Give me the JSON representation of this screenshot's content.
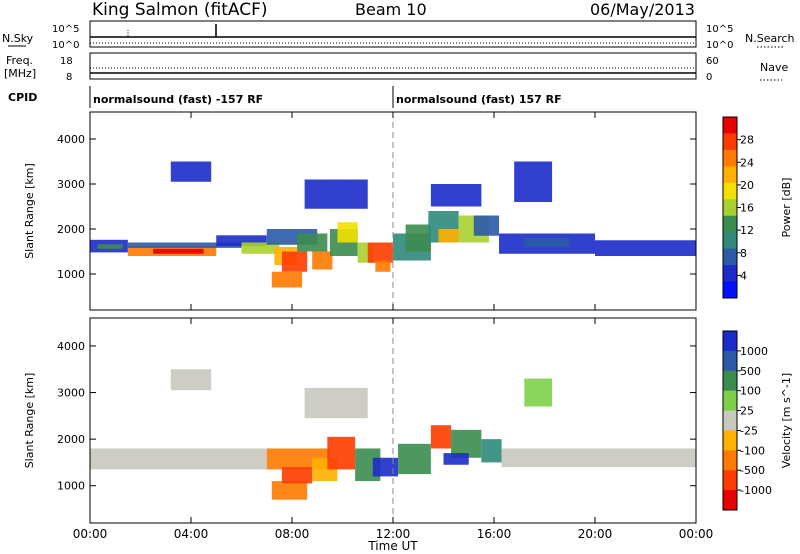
{
  "header": {
    "station": "King Salmon (fitACF)",
    "beam": "Beam 10",
    "date": "06/May/2013"
  },
  "params": {
    "nsky_label": "N.Sky",
    "nsky_ticks": [
      "10^5",
      "10^0"
    ],
    "nsearch_label": "N.Search",
    "nsearch_ticks": [
      "10^5",
      "10^0"
    ],
    "freq_label": "Freq.",
    "freq_unit": "[MHz]",
    "freq_ticks": [
      "18",
      "8"
    ],
    "nave_label": "Nave",
    "nave_ticks": [
      "60",
      "0"
    ],
    "cpid_label": "CPID",
    "cpid_segments": [
      {
        "label": "normalsound (fast) -157 RF",
        "start_hour": 0,
        "end_hour": 12
      },
      {
        "label": "normalsound (fast) 157 RF",
        "start_hour": 12,
        "end_hour": 24
      }
    ]
  },
  "x_axis": {
    "label": "Time UT",
    "range_hours": [
      0,
      24
    ],
    "ticks": [
      {
        "hour": 0,
        "label": "00:00"
      },
      {
        "hour": 4,
        "label": "04:00"
      },
      {
        "hour": 8,
        "label": "08:00"
      },
      {
        "hour": 12,
        "label": "12:00"
      },
      {
        "hour": 16,
        "label": "16:00"
      },
      {
        "hour": 20,
        "label": "20:00"
      },
      {
        "hour": 24,
        "label": "00:00"
      }
    ]
  },
  "chart_data": [
    {
      "type": "heatmap",
      "name": "power",
      "ylabel": "Slant Range [km]",
      "ylim": [
        200,
        4600
      ],
      "yticks": [
        {
          "value": 1000,
          "label": "1000"
        },
        {
          "value": 2000,
          "label": "2000"
        },
        {
          "value": 3000,
          "label": "3000"
        },
        {
          "value": 4000,
          "label": "4000"
        }
      ],
      "colorbar": {
        "label": "Power [dB]",
        "ticks": [
          "28",
          "24",
          "20",
          "16",
          "12",
          "8",
          "4"
        ],
        "colors": [
          "#e60000",
          "#ff3c00",
          "#ff7a00",
          "#ffb000",
          "#f2e000",
          "#a8d030",
          "#3c8c50",
          "#2f8a7a",
          "#2a5aa8",
          "#1c2cc8",
          "#0010ff"
        ]
      },
      "regions": [
        {
          "t0": 0.0,
          "t1": 1.5,
          "r0": 1480,
          "r1": 1760,
          "color": "#1c2cc8"
        },
        {
          "t0": 0.3,
          "t1": 1.3,
          "r0": 1560,
          "r1": 1660,
          "color": "#3c8c50"
        },
        {
          "t0": 1.5,
          "t1": 5.0,
          "r0": 1400,
          "r1": 1620,
          "color": "#ff7a00"
        },
        {
          "t0": 1.5,
          "t1": 6.0,
          "r0": 1580,
          "r1": 1700,
          "color": "#2a5aa8"
        },
        {
          "t0": 2.5,
          "t1": 4.5,
          "r0": 1450,
          "r1": 1560,
          "color": "#e60000"
        },
        {
          "t0": 5.0,
          "t1": 7.0,
          "r0": 1620,
          "r1": 1860,
          "color": "#1c2cc8"
        },
        {
          "t0": 6.0,
          "t1": 7.5,
          "r0": 1450,
          "r1": 1700,
          "color": "#a8d030"
        },
        {
          "t0": 7.0,
          "t1": 9.0,
          "r0": 1650,
          "r1": 2000,
          "color": "#2a5aa8"
        },
        {
          "t0": 7.3,
          "t1": 8.2,
          "r0": 1200,
          "r1": 1600,
          "color": "#ffb000"
        },
        {
          "t0": 7.6,
          "t1": 8.6,
          "r0": 1050,
          "r1": 1500,
          "color": "#ff3c00"
        },
        {
          "t0": 7.2,
          "t1": 8.4,
          "r0": 700,
          "r1": 1050,
          "color": "#ff7a00"
        },
        {
          "t0": 8.2,
          "t1": 9.4,
          "r0": 1500,
          "r1": 1900,
          "color": "#3c8c50"
        },
        {
          "t0": 8.8,
          "t1": 9.6,
          "r0": 1100,
          "r1": 1500,
          "color": "#ff7a00"
        },
        {
          "t0": 9.5,
          "t1": 10.6,
          "r0": 1400,
          "r1": 2000,
          "color": "#3c8c50"
        },
        {
          "t0": 9.8,
          "t1": 10.6,
          "r0": 1700,
          "r1": 2150,
          "color": "#f2e000"
        },
        {
          "t0": 10.6,
          "t1": 11.2,
          "r0": 1250,
          "r1": 1700,
          "color": "#a8d030"
        },
        {
          "t0": 11.0,
          "t1": 12.0,
          "r0": 1250,
          "r1": 1700,
          "color": "#ff3c00"
        },
        {
          "t0": 11.3,
          "t1": 11.9,
          "r0": 1050,
          "r1": 1300,
          "color": "#ff7a00"
        },
        {
          "t0": 12.0,
          "t1": 13.5,
          "r0": 1300,
          "r1": 1900,
          "color": "#2f8a7a"
        },
        {
          "t0": 12.5,
          "t1": 13.5,
          "r0": 1500,
          "r1": 2100,
          "color": "#3c8c50"
        },
        {
          "t0": 13.4,
          "t1": 14.6,
          "r0": 1700,
          "r1": 2400,
          "color": "#2f8a7a"
        },
        {
          "t0": 13.8,
          "t1": 14.6,
          "r0": 1700,
          "r1": 2000,
          "color": "#ffb000"
        },
        {
          "t0": 14.6,
          "t1": 15.8,
          "r0": 1700,
          "r1": 2300,
          "color": "#a8d030"
        },
        {
          "t0": 15.2,
          "t1": 16.2,
          "r0": 1850,
          "r1": 2300,
          "color": "#2a5aa8"
        },
        {
          "t0": 16.2,
          "t1": 20.0,
          "r0": 1450,
          "r1": 1900,
          "color": "#1c2cc8"
        },
        {
          "t0": 17.2,
          "t1": 19.0,
          "r0": 1600,
          "r1": 1800,
          "color": "#2a5aa8"
        },
        {
          "t0": 20.0,
          "t1": 24.0,
          "r0": 1400,
          "r1": 1750,
          "color": "#1c2cc8"
        },
        {
          "t0": 3.2,
          "t1": 4.8,
          "r0": 3050,
          "r1": 3500,
          "color": "#1c2cc8"
        },
        {
          "t0": 8.5,
          "t1": 11.0,
          "r0": 2450,
          "r1": 3100,
          "color": "#1c2cc8"
        },
        {
          "t0": 13.5,
          "t1": 15.5,
          "r0": 2500,
          "r1": 3000,
          "color": "#1c2cc8"
        },
        {
          "t0": 16.8,
          "t1": 18.3,
          "r0": 2600,
          "r1": 3500,
          "color": "#1c2cc8"
        }
      ]
    },
    {
      "type": "heatmap",
      "name": "velocity",
      "ylabel": "Slant Range [km]",
      "ylim": [
        200,
        4600
      ],
      "yticks": [
        {
          "value": 1000,
          "label": "1000"
        },
        {
          "value": 2000,
          "label": "2000"
        },
        {
          "value": 3000,
          "label": "3000"
        },
        {
          "value": 4000,
          "label": "4000"
        }
      ],
      "colorbar": {
        "label": "Velocity [m s^-1]",
        "ticks": [
          "1000",
          "500",
          "100",
          "25",
          "-25",
          "-100",
          "-500",
          "-1000"
        ],
        "colors": [
          "#1c2cc8",
          "#2a5aa8",
          "#3c8c50",
          "#7ed04a",
          "#c8c8c0",
          "#ffb000",
          "#ff7a00",
          "#ff3c00",
          "#e60000"
        ]
      },
      "regions": [
        {
          "t0": 0.0,
          "t1": 7.0,
          "r0": 1350,
          "r1": 1800,
          "color": "#c8c8c0"
        },
        {
          "t0": 3.2,
          "t1": 4.8,
          "r0": 3050,
          "r1": 3500,
          "color": "#c8c8c0"
        },
        {
          "t0": 7.0,
          "t1": 9.5,
          "r0": 1350,
          "r1": 1800,
          "color": "#ff7a00"
        },
        {
          "t0": 7.2,
          "t1": 8.6,
          "r0": 700,
          "r1": 1100,
          "color": "#ff7a00"
        },
        {
          "t0": 7.6,
          "t1": 8.8,
          "r0": 1050,
          "r1": 1400,
          "color": "#ff3c00"
        },
        {
          "t0": 8.8,
          "t1": 9.8,
          "r0": 1100,
          "r1": 1600,
          "color": "#ffb000"
        },
        {
          "t0": 9.4,
          "t1": 10.5,
          "r0": 1350,
          "r1": 2050,
          "color": "#ff3c00"
        },
        {
          "t0": 10.5,
          "t1": 11.5,
          "r0": 1100,
          "r1": 1800,
          "color": "#3c8c50"
        },
        {
          "t0": 11.2,
          "t1": 12.2,
          "r0": 1200,
          "r1": 1600,
          "color": "#1c2cc8"
        },
        {
          "t0": 12.2,
          "t1": 13.5,
          "r0": 1250,
          "r1": 1900,
          "color": "#3c8c50"
        },
        {
          "t0": 13.5,
          "t1": 14.3,
          "r0": 1800,
          "r1": 2300,
          "color": "#ff3c00"
        },
        {
          "t0": 14.3,
          "t1": 15.5,
          "r0": 1600,
          "r1": 2200,
          "color": "#3c8c50"
        },
        {
          "t0": 14.0,
          "t1": 15.0,
          "r0": 1450,
          "r1": 1700,
          "color": "#1c2cc8"
        },
        {
          "t0": 15.5,
          "t1": 16.3,
          "r0": 1500,
          "r1": 2000,
          "color": "#2f8a7a"
        },
        {
          "t0": 16.3,
          "t1": 24.0,
          "r0": 1400,
          "r1": 1800,
          "color": "#c8c8c0"
        },
        {
          "t0": 17.2,
          "t1": 18.3,
          "r0": 2700,
          "r1": 3300,
          "color": "#7ed04a"
        },
        {
          "t0": 8.5,
          "t1": 11.0,
          "r0": 2450,
          "r1": 3100,
          "color": "#c8c8c0"
        }
      ]
    }
  ]
}
